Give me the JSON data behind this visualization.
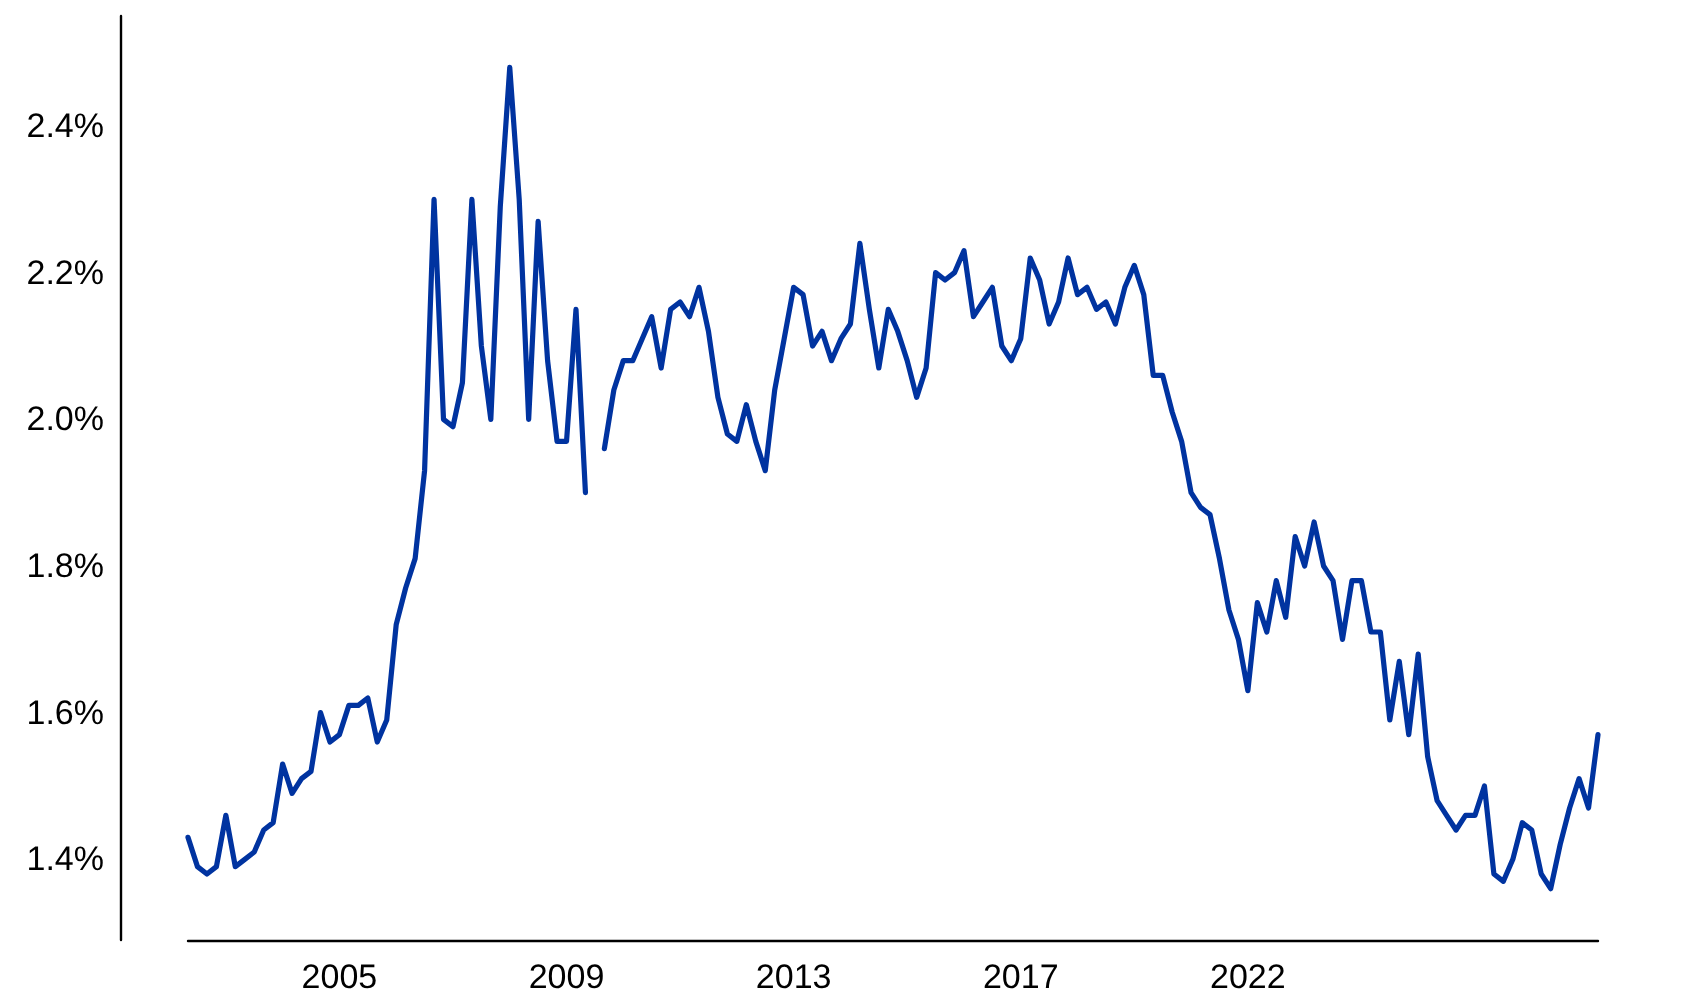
{
  "chart_data": {
    "type": "line",
    "categories": [
      null,
      null,
      null,
      null,
      null,
      null,
      null,
      null,
      null,
      null,
      null,
      null,
      null,
      null,
      null,
      null,
      "2005",
      null,
      null,
      null,
      null,
      null,
      null,
      null,
      null,
      null,
      null,
      null,
      null,
      null,
      null,
      null,
      null,
      null,
      null,
      null,
      null,
      null,
      null,
      null,
      "2009",
      null,
      null,
      null,
      null,
      null,
      null,
      null,
      null,
      null,
      null,
      null,
      null,
      null,
      null,
      null,
      null,
      null,
      null,
      null,
      null,
      null,
      null,
      null,
      "2013",
      null,
      null,
      null,
      null,
      null,
      null,
      null,
      null,
      null,
      null,
      null,
      null,
      null,
      null,
      null,
      null,
      null,
      null,
      null,
      null,
      null,
      null,
      null,
      "2017",
      null,
      null,
      null,
      null,
      null,
      null,
      null,
      null,
      null,
      null,
      null,
      null,
      null,
      null,
      null,
      null,
      null,
      null,
      null,
      null,
      null,
      null,
      null,
      "2022",
      null,
      null,
      null,
      null,
      null,
      null,
      null,
      null,
      null,
      null,
      null,
      null,
      null,
      null,
      null,
      null,
      null,
      null,
      null,
      null,
      null,
      null,
      null,
      null,
      null,
      null,
      null,
      null,
      null,
      null,
      null,
      null,
      null,
      null,
      null,
      null,
      null
    ],
    "series": [
      {
        "color": "#0033a0",
        "values": [
          1.43,
          1.39,
          1.38,
          1.39,
          1.46,
          1.39,
          1.4,
          1.41,
          1.44,
          1.45,
          1.53,
          1.49,
          1.51,
          1.52,
          1.6,
          1.56,
          1.57,
          1.61,
          1.61,
          1.62,
          1.56,
          1.59,
          1.72,
          1.77,
          1.81,
          1.93,
          2.3,
          2.0,
          1.99,
          2.05,
          2.3,
          2.1,
          2.0,
          2.29,
          2.48,
          2.3,
          2.0,
          2.27,
          2.08,
          1.97,
          1.97,
          2.15,
          1.9,
          null,
          1.96,
          2.04,
          2.08,
          2.08,
          2.11,
          2.14,
          2.07,
          2.15,
          2.16,
          2.14,
          2.18,
          2.12,
          2.03,
          1.98,
          1.97,
          2.02,
          1.97,
          1.93,
          2.04,
          2.11,
          2.18,
          2.17,
          2.1,
          2.12,
          2.08,
          2.11,
          2.13,
          2.24,
          2.15,
          2.07,
          2.15,
          2.12,
          2.08,
          2.03,
          2.07,
          2.2,
          2.19,
          2.2,
          2.23,
          2.14,
          2.16,
          2.18,
          2.1,
          2.08,
          2.11,
          2.22,
          2.19,
          2.13,
          2.16,
          2.22,
          2.17,
          2.18,
          2.15,
          2.16,
          2.13,
          2.18,
          2.21,
          2.17,
          2.06,
          2.06,
          2.01,
          1.97,
          1.9,
          1.88,
          1.87,
          1.81,
          1.74,
          1.7,
          1.63,
          1.75,
          1.71,
          1.78,
          1.73,
          1.84,
          1.8,
          1.86,
          1.8,
          1.78,
          1.7,
          1.78,
          1.78,
          1.71,
          1.71,
          1.59,
          1.67,
          1.57,
          1.68,
          1.54,
          1.48,
          1.46,
          1.44,
          1.46,
          1.46,
          1.5,
          1.38,
          1.37,
          1.4,
          1.45,
          1.44,
          1.38,
          1.36,
          1.42,
          1.47,
          1.51,
          1.47,
          1.57
        ]
      }
    ],
    "ylim": [
      1.29,
      2.55
    ],
    "yticks": [
      {
        "value": 1.4,
        "label": "1.4%"
      },
      {
        "value": 1.6,
        "label": "1.6%"
      },
      {
        "value": 1.8,
        "label": "1.8%"
      },
      {
        "value": 2.0,
        "label": "2.0%"
      },
      {
        "value": 2.2,
        "label": "2.2%"
      },
      {
        "value": 2.4,
        "label": "2.4%"
      }
    ],
    "grid": false,
    "marker": "none",
    "line_style": "solid"
  }
}
